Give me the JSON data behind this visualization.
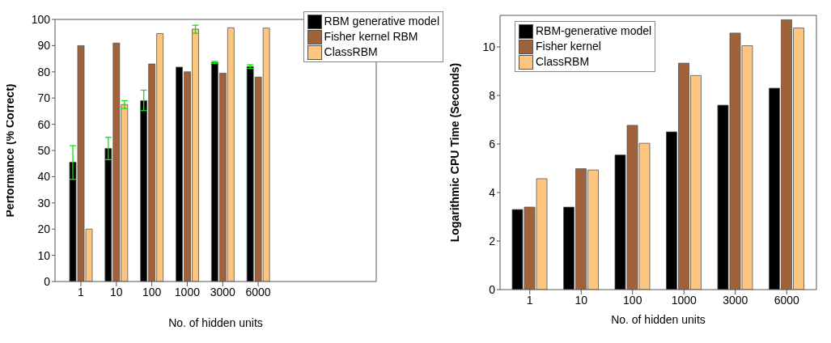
{
  "chart_data": [
    {
      "type": "bar",
      "xlabel": "No. of hidden units",
      "ylabel": "Performance (% Correct)",
      "categories": [
        "1",
        "10",
        "100",
        "1000",
        "3000",
        "6000"
      ],
      "ylim": [
        0,
        100
      ],
      "yticks": [
        0,
        10,
        20,
        30,
        40,
        50,
        60,
        70,
        80,
        90,
        100
      ],
      "legend": "top right",
      "series": [
        {
          "name": "RBM generative model",
          "color": "#000000",
          "values": [
            45.5,
            50.8,
            69,
            81.8,
            83.6,
            82
          ],
          "errors": [
            [
              39,
              51.8
            ],
            [
              46.5,
              55
            ],
            [
              65.2,
              73
            ],
            null,
            [
              83.2,
              84
            ],
            [
              81.3,
              82.7
            ]
          ]
        },
        {
          "name": "Fisher kernel RBM",
          "color": "#a0623a",
          "values": [
            90,
            91,
            83,
            80,
            79.5,
            78
          ]
        },
        {
          "name": "ClassRBM",
          "color": "#fdc680",
          "values": [
            20,
            67.5,
            94.6,
            96.3,
            96.8,
            96.7
          ],
          "errors": [
            null,
            [
              66,
              69
            ],
            null,
            [
              94.7,
              97.8
            ],
            null,
            null
          ]
        }
      ]
    },
    {
      "type": "bar",
      "xlabel": "No. of hidden units",
      "ylabel": "Logarithmic CPU Time (Seconds)",
      "categories": [
        "1",
        "10",
        "100",
        "1000",
        "3000",
        "6000"
      ],
      "ylim": [
        0,
        11.3
      ],
      "yticks": [
        0,
        2,
        4,
        6,
        8,
        10
      ],
      "legend": "top left",
      "series": [
        {
          "name": "RBM-generative model",
          "color": "#000000",
          "values": [
            3.3,
            3.4,
            5.55,
            6.5,
            7.6,
            8.3
          ]
        },
        {
          "name": "Fisher kernel",
          "color": "#a0623a",
          "values": [
            3.4,
            4.98,
            6.77,
            9.33,
            10.57,
            11.12
          ]
        },
        {
          "name": "ClassRBM",
          "color": "#fdc680",
          "values": [
            4.57,
            4.93,
            6.03,
            8.82,
            10.05,
            10.78
          ]
        }
      ]
    }
  ]
}
